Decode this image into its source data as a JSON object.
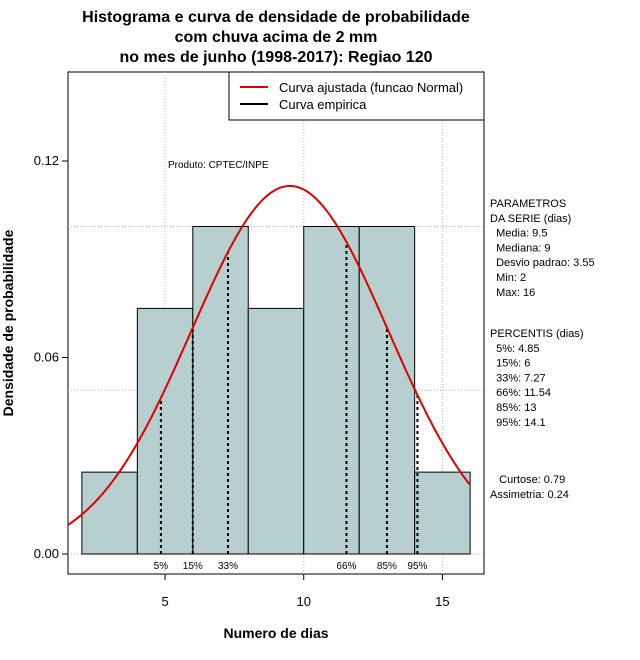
{
  "chart_data": {
    "type": "bar",
    "title_lines": [
      "Histograma e curva de densidade de probabilidade",
      "com chuva acima de 2 mm",
      "no mes de junho (1998-2017): Regiao 120"
    ],
    "xlabel": "Numero de dias",
    "ylabel": "Densidade de probabilidade",
    "xlim": [
      1.5,
      16.5
    ],
    "ylim": [
      0,
      0.14
    ],
    "x_ticks": [
      5,
      10,
      15
    ],
    "y_ticks": [
      0.0,
      0.06,
      0.12
    ],
    "x_tick_labels": [
      "5",
      "10",
      "15"
    ],
    "y_tick_labels": [
      "0.00",
      "0.06",
      "0.12"
    ],
    "grid": true,
    "bins": [
      {
        "start": 2,
        "end": 4,
        "density": 0.025
      },
      {
        "start": 4,
        "end": 6,
        "density": 0.075
      },
      {
        "start": 6,
        "end": 8,
        "density": 0.1
      },
      {
        "start": 8,
        "end": 10,
        "density": 0.075
      },
      {
        "start": 10,
        "end": 12,
        "density": 0.1
      },
      {
        "start": 12,
        "end": 14,
        "density": 0.1
      },
      {
        "start": 14,
        "end": 16,
        "density": 0.025
      }
    ],
    "normal_curve": {
      "mean": 9.5,
      "sd": 3.55,
      "color": "#e00000"
    },
    "bar_color": "#b8cfcf",
    "percentiles": [
      {
        "label": "5%",
        "x": 4.85
      },
      {
        "label": "15%",
        "x": 6
      },
      {
        "label": "33%",
        "x": 7.27
      },
      {
        "label": "66%",
        "x": 11.54
      },
      {
        "label": "85%",
        "x": 13
      },
      {
        "label": "95%",
        "x": 14.1
      }
    ],
    "legend": {
      "placement": "top-right",
      "entries": [
        {
          "label": "Curva ajustada (funcao Normal)",
          "color": "#e00000"
        },
        {
          "label": "Curva empirica",
          "color": "#000000"
        }
      ]
    },
    "credit": "Produto: CPTEC/INPE",
    "parametros": {
      "lines": [
        "PARAMETROS",
        "DA SERIE (dias)",
        "  Media: 9.5",
        "  Mediana: 9",
        "  Desvio padrao: 3.55",
        "  Min: 2",
        "  Max: 16"
      ]
    },
    "percentis": {
      "lines": [
        "PERCENTIS (dias)",
        "  5%: 4.85",
        "  15%: 6",
        "  33%: 7.27",
        "  66%: 11.54",
        "  85%: 13",
        "  95%: 14.1"
      ]
    },
    "stats": {
      "lines": [
        "   Curtose: 0.79",
        "Assimetria: 0.24"
      ]
    }
  }
}
